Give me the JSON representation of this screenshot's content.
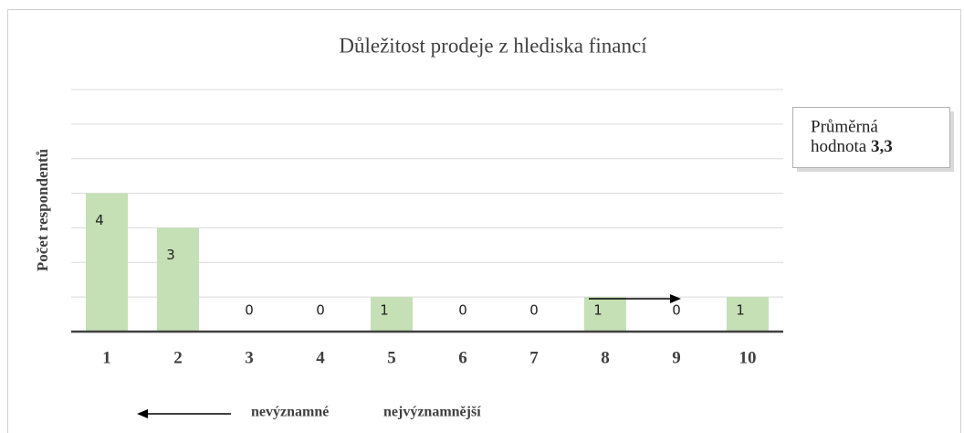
{
  "chart_data": {
    "type": "bar",
    "title": "Důležitost prodeje z hlediska financí",
    "y_label": "Počet respondentů",
    "categories": [
      "1",
      "2",
      "3",
      "4",
      "5",
      "6",
      "7",
      "8",
      "9",
      "10"
    ],
    "values": [
      4,
      3,
      0,
      0,
      1,
      0,
      0,
      1,
      0,
      1
    ],
    "color": "#c5e0b4",
    "ylim": [
      0,
      7
    ],
    "yticks": [
      0,
      1,
      2,
      3,
      4,
      5,
      6,
      7
    ],
    "ytick_labels": false,
    "grid": true,
    "annotation": {
      "line1": "Průměrná",
      "line2": "hodnota",
      "value": "3,3"
    },
    "scale_left": "nevýznamné",
    "scale_right": "nejvýznamnější"
  }
}
